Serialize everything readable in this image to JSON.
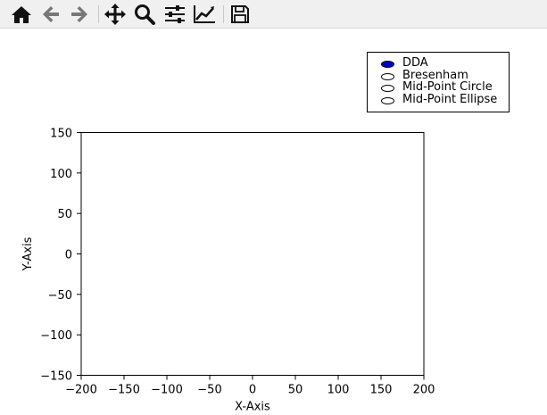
{
  "toolbar": {
    "items": [
      {
        "name": "home-button",
        "icon": "home-icon"
      },
      {
        "name": "back-button",
        "icon": "arrow-left-icon"
      },
      {
        "name": "forward-button",
        "icon": "arrow-right-icon"
      },
      {
        "name": "pan-button",
        "icon": "move-icon"
      },
      {
        "name": "zoom-button",
        "icon": "magnifier-icon"
      },
      {
        "name": "configure-subplots-button",
        "icon": "sliders-icon"
      },
      {
        "name": "edit-axis-button",
        "icon": "line-chart-icon"
      },
      {
        "name": "save-button",
        "icon": "floppy-disk-icon"
      }
    ]
  },
  "radio": {
    "selected": "DDA",
    "selected_color": "#0000cc",
    "options": [
      "DDA",
      "Bresenham",
      "Mid-Point Circle",
      "Mid-Point Ellipse"
    ]
  },
  "chart_data": {
    "type": "line",
    "series": [],
    "title": "",
    "xlabel": "X-Axis",
    "ylabel": "Y-Axis",
    "xlim": [
      -200,
      200
    ],
    "ylim": [
      -150,
      150
    ],
    "xticks": [
      -200,
      -150,
      -100,
      -50,
      0,
      50,
      100,
      150,
      200
    ],
    "yticks": [
      -150,
      -100,
      -50,
      0,
      50,
      100,
      150
    ],
    "xtick_labels": [
      "−200",
      "−150",
      "−100",
      "−50",
      "0",
      "50",
      "100",
      "150",
      "200"
    ],
    "ytick_labels": [
      "−150",
      "−100",
      "−50",
      "0",
      "50",
      "100",
      "150"
    ],
    "grid": false
  }
}
